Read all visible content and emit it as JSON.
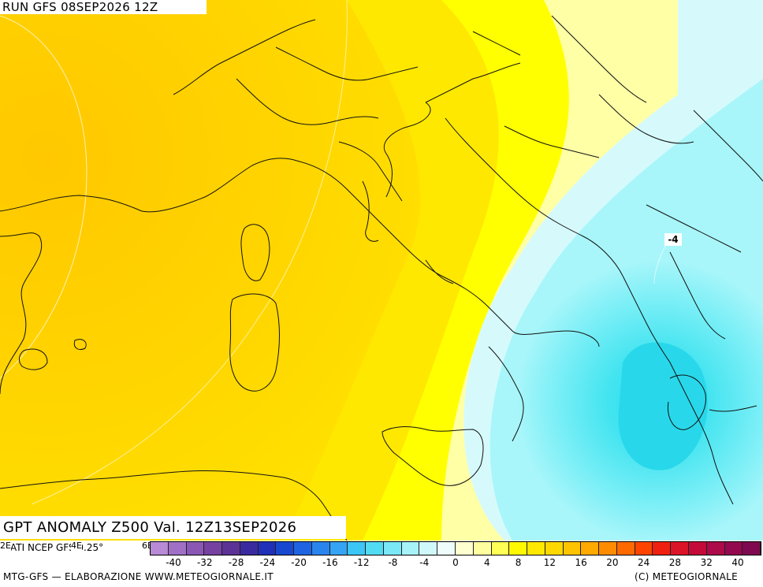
{
  "header": {
    "run": "RUN GFS 08SEP2026 12Z"
  },
  "map": {
    "field_title": "GPT ANOMALY Z500 Val. 12Z13SEP2026",
    "contour_label": "-4"
  },
  "footer": {
    "source": "DATI NCEP GFS 0.25°",
    "lon_ticks": [
      "2E",
      "4E",
      "6E"
    ],
    "left_credit": "MTG-GFS — ELABORAZIONE WWW.METEOGIORNALE.IT",
    "right_credit": "(C) METEOGIORNALE"
  },
  "legend": {
    "labels": [
      "-40",
      "-32",
      "-28",
      "-24",
      "-20",
      "-16",
      "-12",
      "-8",
      "-4",
      "0",
      "4",
      "8",
      "12",
      "16",
      "20",
      "24",
      "28",
      "32",
      "40"
    ],
    "colors": [
      "#b98ad6",
      "#a070c6",
      "#8a58b4",
      "#7642a2",
      "#5c3296",
      "#3a2aa0",
      "#2030b8",
      "#1848d0",
      "#1e64e2",
      "#2a84ee",
      "#36a4f4",
      "#3cc6f6",
      "#52dcf4",
      "#7ae8f6",
      "#a6f2f8",
      "#d0f8fa",
      "#eefcfc",
      "#ffffd0",
      "#ffffa0",
      "#ffff55",
      "#fff800",
      "#ffe800",
      "#ffd800",
      "#ffc400",
      "#ffaa00",
      "#ff8c00",
      "#ff6a00",
      "#ff4400",
      "#f02010",
      "#dc1428",
      "#c40a38",
      "#ac0a48",
      "#940850",
      "#800850"
    ]
  }
}
